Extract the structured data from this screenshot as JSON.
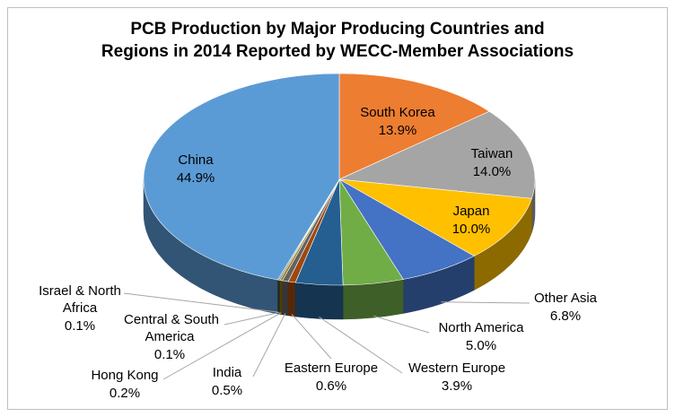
{
  "chart_data": {
    "type": "pie",
    "title_line1": "PCB Production by Major Producing Countries and",
    "title_line2": "Regions in 2014 Reported by WECC-Member Associations",
    "slices": [
      {
        "label": "South Korea",
        "value": 13.9,
        "display": "13.9%",
        "color": "#ED7D31"
      },
      {
        "label": "Taiwan",
        "value": 14.0,
        "display": "14.0%",
        "color": "#A5A5A5"
      },
      {
        "label": "Japan",
        "value": 10.0,
        "display": "10.0%",
        "color": "#FFC000"
      },
      {
        "label": "Other Asia",
        "value": 6.8,
        "display": "6.8%",
        "color": "#4472C4"
      },
      {
        "label": "North America",
        "value": 5.0,
        "display": "5.0%",
        "color": "#70AD47"
      },
      {
        "label": "Western Europe",
        "value": 3.9,
        "display": "3.9%",
        "color": "#255E91"
      },
      {
        "label": "Eastern Europe",
        "value": 0.6,
        "display": "0.6%",
        "color": "#9E480E"
      },
      {
        "label": "India",
        "value": 0.5,
        "display": "0.5%",
        "color": "#636363"
      },
      {
        "label": "Hong Kong",
        "value": 0.2,
        "display": "0.2%",
        "color": "#997300"
      },
      {
        "label": "Central & South America",
        "value": 0.1,
        "display": "0.1%",
        "color": "#264478"
      },
      {
        "label": "Israel & North Africa",
        "value": 0.1,
        "display": "0.1%",
        "color": "#43682B"
      },
      {
        "label": "China",
        "value": 44.9,
        "display": "44.9%",
        "color": "#5B9BD5"
      }
    ]
  }
}
